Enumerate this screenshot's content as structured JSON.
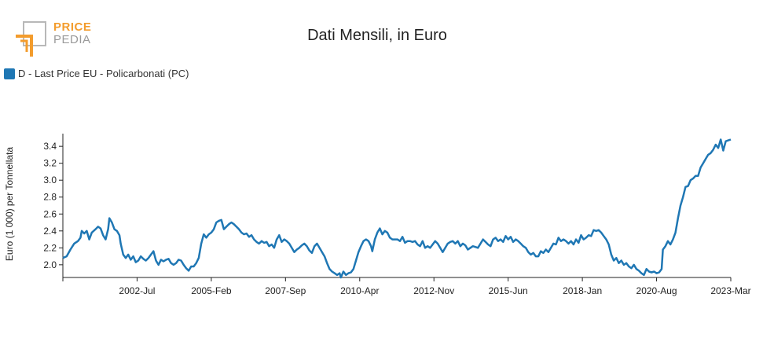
{
  "header": {
    "logo_line1": "PRICE",
    "logo_line2": "PEDIA",
    "title": "Dati Mensili, in Euro"
  },
  "legend": {
    "label": "D - Last Price EU - Policarbonati (PC)",
    "color": "#1f77b4"
  },
  "chart_data": {
    "type": "line",
    "title": "Dati Mensili, in Euro",
    "ylabel": "Euro (1 000) per Tonnellata",
    "xlabel": "",
    "ylim": [
      1.85,
      3.55
    ],
    "yticks": [
      2.0,
      2.2,
      2.4,
      2.6,
      2.8,
      3.0,
      3.2,
      3.4
    ],
    "xticks": [
      "2002-Jul",
      "2005-Feb",
      "2007-Sep",
      "2010-Apr",
      "2012-Nov",
      "2015-Jun",
      "2018-Jan",
      "2020-Aug",
      "2023-Mar"
    ],
    "grid": false,
    "legend_position": "top-left",
    "series": [
      {
        "name": "D - Last Price EU - Policarbonati (PC)",
        "color": "#1f77b4",
        "points": [
          [
            0.0,
            2.08
          ],
          [
            0.3,
            2.1
          ],
          [
            0.6,
            2.18
          ],
          [
            0.9,
            2.25
          ],
          [
            1.2,
            2.28
          ],
          [
            1.4,
            2.32
          ],
          [
            1.5,
            2.4
          ],
          [
            1.7,
            2.37
          ],
          [
            1.9,
            2.4
          ],
          [
            2.1,
            2.3
          ],
          [
            2.3,
            2.38
          ],
          [
            2.6,
            2.42
          ],
          [
            2.8,
            2.45
          ],
          [
            3.0,
            2.43
          ],
          [
            3.2,
            2.35
          ],
          [
            3.4,
            2.3
          ],
          [
            3.6,
            2.42
          ],
          [
            3.7,
            2.55
          ],
          [
            3.9,
            2.5
          ],
          [
            4.1,
            2.42
          ],
          [
            4.3,
            2.4
          ],
          [
            4.5,
            2.35
          ],
          [
            4.6,
            2.25
          ],
          [
            4.8,
            2.12
          ],
          [
            5.0,
            2.08
          ],
          [
            5.2,
            2.12
          ],
          [
            5.4,
            2.06
          ],
          [
            5.6,
            2.1
          ],
          [
            5.8,
            2.03
          ],
          [
            6.0,
            2.05
          ],
          [
            6.2,
            2.1
          ],
          [
            6.4,
            2.07
          ],
          [
            6.6,
            2.05
          ],
          [
            6.8,
            2.08
          ],
          [
            7.0,
            2.12
          ],
          [
            7.2,
            2.16
          ],
          [
            7.4,
            2.05
          ],
          [
            7.6,
            2.0
          ],
          [
            7.8,
            2.06
          ],
          [
            8.0,
            2.04
          ],
          [
            8.2,
            2.06
          ],
          [
            8.4,
            2.07
          ],
          [
            8.6,
            2.02
          ],
          [
            8.8,
            2.0
          ],
          [
            9.0,
            2.02
          ],
          [
            9.2,
            2.06
          ],
          [
            9.4,
            2.05
          ],
          [
            9.6,
            2.0
          ],
          [
            9.8,
            1.96
          ],
          [
            10.0,
            1.93
          ],
          [
            10.2,
            1.98
          ],
          [
            10.4,
            1.98
          ],
          [
            10.6,
            2.02
          ],
          [
            10.8,
            2.08
          ],
          [
            11.0,
            2.25
          ],
          [
            11.2,
            2.36
          ],
          [
            11.4,
            2.32
          ],
          [
            11.6,
            2.36
          ],
          [
            11.8,
            2.38
          ],
          [
            12.0,
            2.42
          ],
          [
            12.2,
            2.5
          ],
          [
            12.4,
            2.52
          ],
          [
            12.6,
            2.53
          ],
          [
            12.8,
            2.42
          ],
          [
            13.0,
            2.45
          ],
          [
            13.2,
            2.48
          ],
          [
            13.4,
            2.5
          ],
          [
            13.6,
            2.48
          ],
          [
            13.8,
            2.45
          ],
          [
            14.0,
            2.42
          ],
          [
            14.2,
            2.38
          ],
          [
            14.4,
            2.36
          ],
          [
            14.6,
            2.37
          ],
          [
            14.8,
            2.33
          ],
          [
            15.0,
            2.35
          ],
          [
            15.2,
            2.3
          ],
          [
            15.4,
            2.27
          ],
          [
            15.6,
            2.25
          ],
          [
            15.8,
            2.28
          ],
          [
            16.0,
            2.26
          ],
          [
            16.2,
            2.27
          ],
          [
            16.4,
            2.22
          ],
          [
            16.6,
            2.24
          ],
          [
            16.8,
            2.2
          ],
          [
            17.0,
            2.3
          ],
          [
            17.2,
            2.35
          ],
          [
            17.4,
            2.27
          ],
          [
            17.6,
            2.3
          ],
          [
            17.8,
            2.28
          ],
          [
            18.0,
            2.25
          ],
          [
            18.2,
            2.2
          ],
          [
            18.4,
            2.15
          ],
          [
            18.6,
            2.18
          ],
          [
            18.8,
            2.2
          ],
          [
            19.0,
            2.23
          ],
          [
            19.2,
            2.25
          ],
          [
            19.4,
            2.22
          ],
          [
            19.6,
            2.17
          ],
          [
            19.8,
            2.14
          ],
          [
            20.0,
            2.22
          ],
          [
            20.2,
            2.25
          ],
          [
            20.4,
            2.2
          ],
          [
            20.6,
            2.15
          ],
          [
            20.8,
            2.1
          ],
          [
            21.0,
            2.02
          ],
          [
            21.2,
            1.95
          ],
          [
            21.4,
            1.92
          ],
          [
            21.6,
            1.9
          ],
          [
            21.8,
            1.88
          ],
          [
            22.0,
            1.9
          ],
          [
            22.1,
            1.85
          ],
          [
            22.3,
            1.92
          ],
          [
            22.5,
            1.88
          ],
          [
            22.7,
            1.9
          ],
          [
            22.9,
            1.91
          ],
          [
            23.1,
            1.95
          ],
          [
            23.3,
            2.05
          ],
          [
            23.5,
            2.15
          ],
          [
            23.7,
            2.22
          ],
          [
            23.9,
            2.28
          ],
          [
            24.1,
            2.3
          ],
          [
            24.3,
            2.28
          ],
          [
            24.5,
            2.22
          ],
          [
            24.6,
            2.16
          ],
          [
            24.8,
            2.3
          ],
          [
            25.0,
            2.38
          ],
          [
            25.2,
            2.43
          ],
          [
            25.4,
            2.36
          ],
          [
            25.6,
            2.4
          ],
          [
            25.8,
            2.38
          ],
          [
            26.0,
            2.32
          ],
          [
            26.2,
            2.3
          ],
          [
            26.4,
            2.3
          ],
          [
            26.6,
            2.3
          ],
          [
            26.8,
            2.28
          ],
          [
            27.0,
            2.33
          ],
          [
            27.2,
            2.26
          ],
          [
            27.4,
            2.28
          ],
          [
            27.6,
            2.28
          ],
          [
            27.8,
            2.27
          ],
          [
            28.0,
            2.28
          ],
          [
            28.2,
            2.24
          ],
          [
            28.4,
            2.22
          ],
          [
            28.6,
            2.28
          ],
          [
            28.8,
            2.2
          ],
          [
            29.0,
            2.22
          ],
          [
            29.2,
            2.2
          ],
          [
            29.4,
            2.24
          ],
          [
            29.6,
            2.28
          ],
          [
            29.8,
            2.25
          ],
          [
            30.0,
            2.2
          ],
          [
            30.2,
            2.15
          ],
          [
            30.4,
            2.2
          ],
          [
            30.6,
            2.25
          ],
          [
            30.8,
            2.27
          ],
          [
            31.0,
            2.28
          ],
          [
            31.2,
            2.25
          ],
          [
            31.4,
            2.28
          ],
          [
            31.6,
            2.22
          ],
          [
            31.8,
            2.25
          ],
          [
            32.0,
            2.23
          ],
          [
            32.2,
            2.18
          ],
          [
            32.4,
            2.2
          ],
          [
            32.6,
            2.22
          ],
          [
            32.8,
            2.21
          ],
          [
            33.0,
            2.2
          ],
          [
            33.2,
            2.25
          ],
          [
            33.4,
            2.3
          ],
          [
            33.6,
            2.27
          ],
          [
            33.8,
            2.24
          ],
          [
            34.0,
            2.22
          ],
          [
            34.2,
            2.3
          ],
          [
            34.4,
            2.32
          ],
          [
            34.6,
            2.28
          ],
          [
            34.8,
            2.3
          ],
          [
            35.0,
            2.27
          ],
          [
            35.2,
            2.34
          ],
          [
            35.4,
            2.3
          ],
          [
            35.6,
            2.33
          ],
          [
            35.8,
            2.27
          ],
          [
            36.0,
            2.3
          ],
          [
            36.2,
            2.28
          ],
          [
            36.4,
            2.25
          ],
          [
            36.6,
            2.22
          ],
          [
            36.8,
            2.2
          ],
          [
            37.0,
            2.15
          ],
          [
            37.2,
            2.12
          ],
          [
            37.4,
            2.14
          ],
          [
            37.6,
            2.1
          ],
          [
            37.8,
            2.1
          ],
          [
            38.0,
            2.16
          ],
          [
            38.2,
            2.14
          ],
          [
            38.4,
            2.18
          ],
          [
            38.6,
            2.15
          ],
          [
            38.8,
            2.2
          ],
          [
            39.0,
            2.25
          ],
          [
            39.2,
            2.24
          ],
          [
            39.4,
            2.32
          ],
          [
            39.6,
            2.28
          ],
          [
            39.8,
            2.3
          ],
          [
            40.0,
            2.28
          ],
          [
            40.2,
            2.25
          ],
          [
            40.4,
            2.28
          ],
          [
            40.6,
            2.24
          ],
          [
            40.8,
            2.3
          ],
          [
            41.0,
            2.26
          ],
          [
            41.2,
            2.35
          ],
          [
            41.4,
            2.3
          ],
          [
            41.6,
            2.32
          ],
          [
            41.8,
            2.35
          ],
          [
            42.0,
            2.34
          ],
          [
            42.2,
            2.41
          ],
          [
            42.4,
            2.4
          ],
          [
            42.6,
            2.41
          ],
          [
            42.8,
            2.38
          ],
          [
            43.0,
            2.34
          ],
          [
            43.2,
            2.3
          ],
          [
            43.4,
            2.24
          ],
          [
            43.6,
            2.12
          ],
          [
            43.8,
            2.05
          ],
          [
            44.0,
            2.08
          ],
          [
            44.2,
            2.02
          ],
          [
            44.4,
            2.05
          ],
          [
            44.6,
            2.0
          ],
          [
            44.8,
            2.02
          ],
          [
            45.0,
            1.98
          ],
          [
            45.2,
            1.96
          ],
          [
            45.4,
            2.0
          ],
          [
            45.6,
            1.95
          ],
          [
            45.8,
            1.93
          ],
          [
            46.0,
            1.9
          ],
          [
            46.2,
            1.88
          ],
          [
            46.4,
            1.95
          ],
          [
            46.6,
            1.92
          ],
          [
            46.8,
            1.91
          ],
          [
            47.0,
            1.92
          ],
          [
            47.2,
            1.9
          ],
          [
            47.4,
            1.91
          ],
          [
            47.6,
            1.95
          ],
          [
            47.7,
            2.18
          ],
          [
            47.9,
            2.22
          ],
          [
            48.1,
            2.28
          ],
          [
            48.3,
            2.24
          ],
          [
            48.5,
            2.3
          ],
          [
            48.7,
            2.38
          ],
          [
            48.9,
            2.55
          ],
          [
            49.1,
            2.7
          ],
          [
            49.3,
            2.8
          ],
          [
            49.5,
            2.92
          ],
          [
            49.7,
            2.93
          ],
          [
            49.9,
            3.0
          ],
          [
            50.1,
            3.02
          ],
          [
            50.3,
            3.05
          ],
          [
            50.5,
            3.05
          ],
          [
            50.7,
            3.15
          ],
          [
            50.9,
            3.2
          ],
          [
            51.1,
            3.25
          ],
          [
            51.3,
            3.3
          ],
          [
            51.5,
            3.32
          ],
          [
            51.7,
            3.36
          ],
          [
            51.9,
            3.42
          ],
          [
            52.1,
            3.38
          ],
          [
            52.3,
            3.48
          ],
          [
            52.5,
            3.35
          ],
          [
            52.7,
            3.46
          ],
          [
            52.9,
            3.47
          ],
          [
            53.1,
            3.48
          ]
        ]
      }
    ]
  }
}
